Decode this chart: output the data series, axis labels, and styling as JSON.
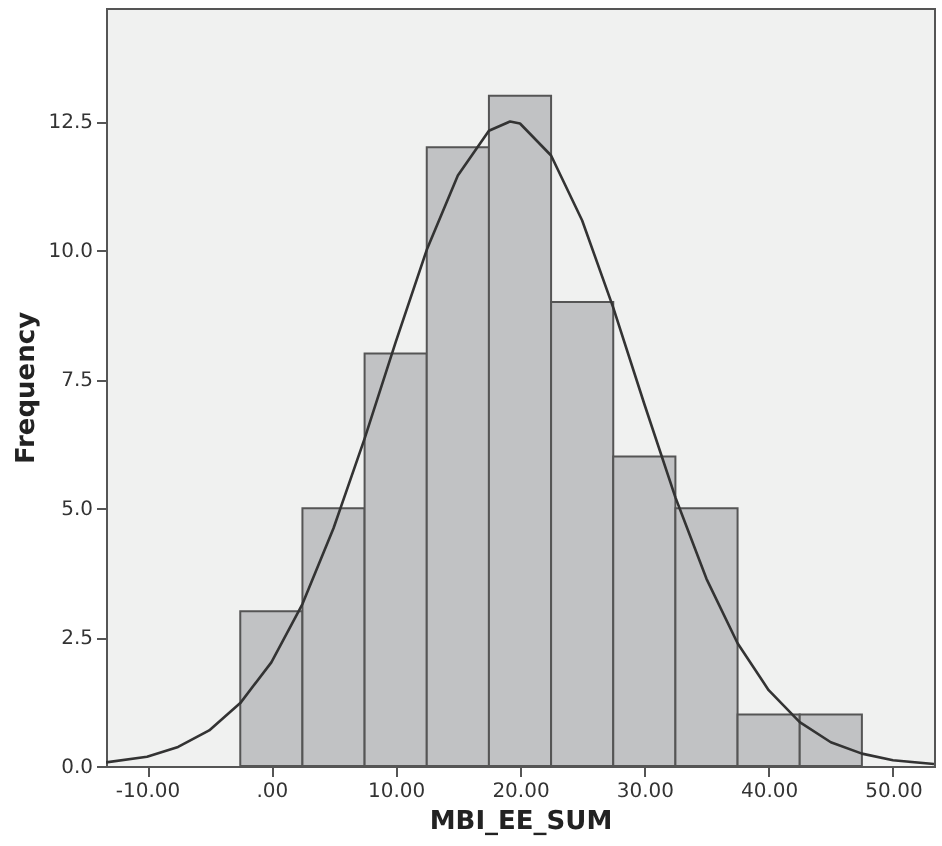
{
  "chart_data": {
    "type": "histogram",
    "xlabel": "MBI_EE_SUM",
    "ylabel": "Frequency",
    "xlim": [
      -13.3,
      53.3
    ],
    "ylim": [
      0,
      14.7
    ],
    "xticks": [
      {
        "value": -10,
        "label": "-10.00"
      },
      {
        "value": 0,
        "label": ".00"
      },
      {
        "value": 10,
        "label": "10.00"
      },
      {
        "value": 20,
        "label": "20.00"
      },
      {
        "value": 30,
        "label": "30.00"
      },
      {
        "value": 40,
        "label": "40.00"
      },
      {
        "value": 50,
        "label": "50.00"
      }
    ],
    "yticks": [
      {
        "value": 0,
        "label": "0.0"
      },
      {
        "value": 2.5,
        "label": "2.5"
      },
      {
        "value": 5,
        "label": "5.0"
      },
      {
        "value": 7.5,
        "label": "7.5"
      },
      {
        "value": 10,
        "label": "10.0"
      },
      {
        "value": 12.5,
        "label": "12.5"
      }
    ],
    "grid": false,
    "series": [
      {
        "type": "histogram",
        "color": "#c1c2c4",
        "bins": [
          -2.5,
          2.5,
          7.5,
          12.5,
          17.5,
          22.5,
          27.5,
          32.5,
          37.5,
          42.5,
          47.5
        ],
        "values": [
          3,
          5,
          8,
          12,
          13,
          9,
          6,
          5,
          1,
          1
        ]
      },
      {
        "type": "line",
        "color": "#333333",
        "x": [
          -13.3,
          -10,
          -7.5,
          -5,
          -2.5,
          0,
          2.5,
          5,
          7.5,
          10,
          12.5,
          15,
          17.5,
          19.2,
          20,
          22.5,
          25,
          27.5,
          30,
          32.5,
          35,
          37.5,
          40,
          42.5,
          45,
          47.5,
          50,
          53.3
        ],
        "values": [
          0.07,
          0.18,
          0.37,
          0.69,
          1.22,
          2.01,
          3.14,
          4.61,
          6.35,
          8.22,
          10.01,
          11.45,
          12.32,
          12.5,
          12.46,
          11.84,
          10.58,
          8.89,
          7.02,
          5.21,
          3.63,
          2.38,
          1.47,
          0.85,
          0.46,
          0.24,
          0.11,
          0.04
        ]
      }
    ]
  }
}
